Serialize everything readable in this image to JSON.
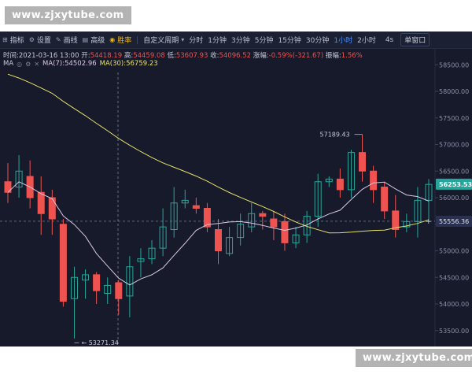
{
  "watermark_text": "www.zjxytube.com",
  "toolbar": {
    "items": [
      {
        "label": "指标",
        "icon": "indicator-icon",
        "glyph": "⊞"
      },
      {
        "label": "设置",
        "icon": "settings-icon",
        "glyph": "⚙"
      },
      {
        "label": "画线",
        "icon": "draw-line-icon",
        "glyph": "✎"
      },
      {
        "label": "高级",
        "icon": "advanced-icon",
        "glyph": "▤"
      },
      {
        "label": "胜率",
        "icon": "win-rate-icon",
        "glyph": "◉"
      }
    ],
    "custom_period": "自定义周期",
    "timeframes": [
      "分时",
      "1分钟",
      "3分钟",
      "5分钟",
      "15分钟",
      "30分钟",
      "1小时",
      "2小时"
    ],
    "active_timeframe": "1小时",
    "extra_timeframe": "4s",
    "window_label": "单窗口"
  },
  "info": {
    "time_label": "时间:",
    "time": "2021-03-16 13:00",
    "open_label": "开:",
    "open": "54418.19",
    "high_label": "高:",
    "high": "54459.08",
    "low_label": "低:",
    "low": "53607.93",
    "close_label": "收:",
    "close": "54096.52",
    "change_label": "涨幅:",
    "change": "-0.59%(-321.67)",
    "amplitude_label": "振幅:",
    "amplitude": "1.56%"
  },
  "ma": {
    "label": "MA",
    "ma7_label": "MA(7):",
    "ma7": "54502.96",
    "ma30_label": "MA(30):",
    "ma30": "56759.23"
  },
  "chart_data": {
    "type": "candlestick",
    "y_ticks": [
      58500,
      58000,
      57500,
      57000,
      56500,
      56000,
      55500,
      55000,
      54500,
      54000,
      53500
    ],
    "y_range": [
      53200,
      58800
    ],
    "current_price": "56253.53",
    "crosshair_price": "55556.36",
    "annotations": {
      "high": "57189.43",
      "low": "53271.34"
    },
    "candles": [
      {
        "o": 56300,
        "h": 56650,
        "l": 55900,
        "c": 56100
      },
      {
        "o": 56200,
        "h": 56800,
        "l": 56000,
        "c": 56500
      },
      {
        "o": 56400,
        "h": 56700,
        "l": 55800,
        "c": 56000
      },
      {
        "o": 56100,
        "h": 56400,
        "l": 55300,
        "c": 55700
      },
      {
        "o": 56000,
        "h": 56150,
        "l": 55300,
        "c": 55600
      },
      {
        "o": 55500,
        "h": 55600,
        "l": 53950,
        "c": 54050
      },
      {
        "o": 54100,
        "h": 54700,
        "l": 53350,
        "c": 54500
      },
      {
        "o": 54450,
        "h": 54650,
        "l": 54100,
        "c": 54550
      },
      {
        "o": 54550,
        "h": 54600,
        "l": 54000,
        "c": 54250
      },
      {
        "o": 54200,
        "h": 54500,
        "l": 54000,
        "c": 54350
      },
      {
        "o": 54400,
        "h": 54450,
        "l": 53800,
        "c": 54100
      },
      {
        "o": 54150,
        "h": 54900,
        "l": 53750,
        "c": 54700
      },
      {
        "o": 54800,
        "h": 55050,
        "l": 54500,
        "c": 54850
      },
      {
        "o": 54850,
        "h": 55200,
        "l": 54750,
        "c": 55050
      },
      {
        "o": 55050,
        "h": 55800,
        "l": 54900,
        "c": 55450
      },
      {
        "o": 55400,
        "h": 56200,
        "l": 55250,
        "c": 55900
      },
      {
        "o": 55900,
        "h": 56150,
        "l": 55800,
        "c": 55950
      },
      {
        "o": 55850,
        "h": 56000,
        "l": 55700,
        "c": 55800
      },
      {
        "o": 55800,
        "h": 55900,
        "l": 55350,
        "c": 55450
      },
      {
        "o": 55400,
        "h": 55600,
        "l": 54750,
        "c": 55000
      },
      {
        "o": 54950,
        "h": 55450,
        "l": 54900,
        "c": 55250
      },
      {
        "o": 55250,
        "h": 55700,
        "l": 55100,
        "c": 55500
      },
      {
        "o": 55450,
        "h": 55900,
        "l": 55350,
        "c": 55700
      },
      {
        "o": 55700,
        "h": 55750,
        "l": 55400,
        "c": 55650
      },
      {
        "o": 55600,
        "h": 55750,
        "l": 55200,
        "c": 55450
      },
      {
        "o": 55550,
        "h": 55700,
        "l": 55000,
        "c": 55150
      },
      {
        "o": 55150,
        "h": 55450,
        "l": 55050,
        "c": 55300
      },
      {
        "o": 55300,
        "h": 55750,
        "l": 55150,
        "c": 55650
      },
      {
        "o": 55650,
        "h": 56450,
        "l": 55450,
        "c": 56300
      },
      {
        "o": 56300,
        "h": 56400,
        "l": 56200,
        "c": 56350
      },
      {
        "o": 56350,
        "h": 56550,
        "l": 56000,
        "c": 56150
      },
      {
        "o": 56150,
        "h": 56900,
        "l": 56000,
        "c": 56850
      },
      {
        "o": 56850,
        "h": 57190,
        "l": 56300,
        "c": 56500
      },
      {
        "o": 56500,
        "h": 56600,
        "l": 55900,
        "c": 56150
      },
      {
        "o": 56200,
        "h": 56300,
        "l": 55600,
        "c": 55750
      },
      {
        "o": 55750,
        "h": 56050,
        "l": 55250,
        "c": 55400
      },
      {
        "o": 55450,
        "h": 55700,
        "l": 55350,
        "c": 55550
      },
      {
        "o": 55550,
        "h": 56200,
        "l": 55250,
        "c": 55950
      },
      {
        "o": 55950,
        "h": 56350,
        "l": 55550,
        "c": 56250
      }
    ]
  }
}
